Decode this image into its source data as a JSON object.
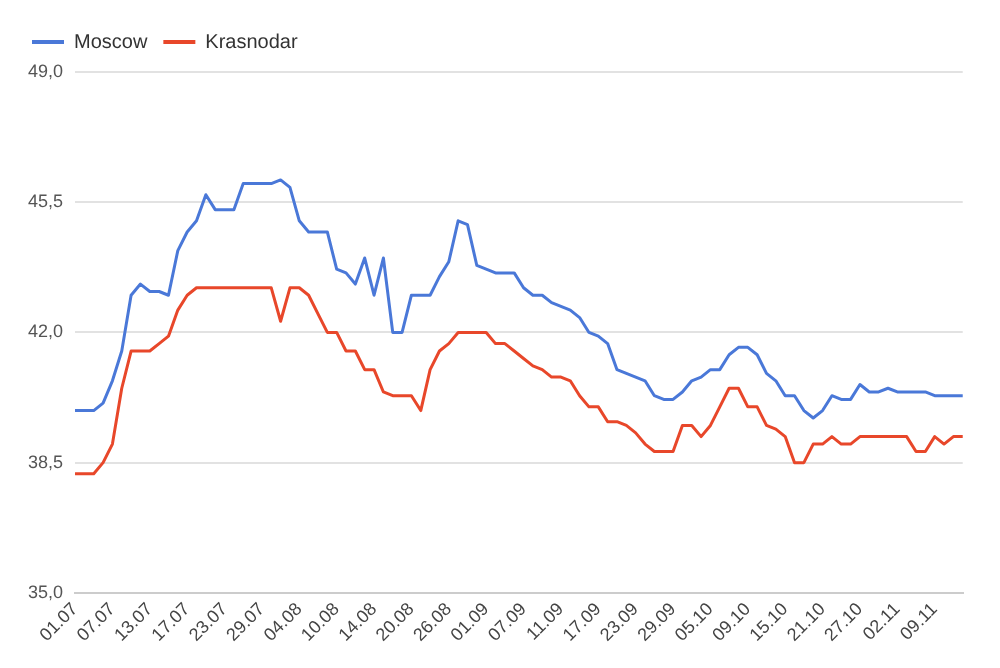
{
  "chart_data": {
    "type": "line",
    "categories": [
      "01.07",
      null,
      null,
      null,
      "07.07",
      null,
      null,
      null,
      "13.07",
      null,
      null,
      null,
      "17.07",
      null,
      null,
      null,
      "23.07",
      null,
      null,
      null,
      "29.07",
      null,
      null,
      null,
      "04.08",
      null,
      null,
      null,
      "10.08",
      null,
      null,
      null,
      "14.08",
      null,
      null,
      null,
      "20.08",
      null,
      null,
      null,
      "26.08",
      null,
      null,
      null,
      "01.09",
      null,
      null,
      null,
      "07.09",
      null,
      null,
      null,
      "11.09",
      null,
      null,
      null,
      "17.09",
      null,
      null,
      null,
      "23.09",
      null,
      null,
      null,
      "29.09",
      null,
      null,
      null,
      "05.10",
      null,
      null,
      null,
      "09.10",
      null,
      null,
      null,
      "15.10",
      null,
      null,
      null,
      "21.10",
      null,
      null,
      null,
      "27.10",
      null,
      null,
      null,
      "02.11",
      null,
      null,
      null,
      "09.11",
      null,
      null,
      null
    ],
    "series": [
      {
        "name": "Moscow",
        "color": "#4a78d8",
        "values": [
          39.9,
          39.9,
          39.9,
          40.1,
          40.7,
          41.5,
          43.0,
          43.3,
          43.1,
          43.1,
          43.0,
          44.2,
          44.7,
          45.0,
          45.7,
          45.3,
          45.3,
          45.3,
          46.0,
          46.0,
          46.0,
          46.0,
          46.1,
          45.9,
          45.0,
          44.7,
          44.7,
          44.7,
          43.7,
          43.6,
          43.3,
          44.0,
          43.0,
          44.0,
          42.0,
          42.0,
          43.0,
          43.0,
          43.0,
          43.5,
          43.9,
          45.0,
          44.9,
          43.8,
          43.7,
          43.6,
          43.6,
          43.6,
          43.2,
          43.0,
          43.0,
          42.8,
          42.7,
          42.6,
          42.4,
          42.0,
          41.9,
          41.7,
          41.0,
          40.9,
          40.8,
          40.7,
          40.3,
          40.2,
          40.2,
          40.4,
          40.7,
          40.8,
          41.0,
          41.0,
          41.4,
          41.6,
          41.6,
          41.4,
          40.9,
          40.7,
          40.3,
          40.3,
          39.9,
          39.7,
          39.9,
          40.3,
          40.2,
          40.2,
          40.6,
          40.4,
          40.4,
          40.5,
          40.4,
          40.4,
          40.4,
          40.4,
          40.3,
          40.3,
          40.3,
          40.3
        ]
      },
      {
        "name": "Krasnodar",
        "color": "#e8472a",
        "values": [
          38.2,
          38.2,
          38.2,
          38.5,
          39.0,
          40.5,
          41.5,
          41.5,
          41.5,
          41.7,
          41.9,
          42.6,
          43.0,
          43.2,
          43.2,
          43.2,
          43.2,
          43.2,
          43.2,
          43.2,
          43.2,
          43.2,
          42.3,
          43.2,
          43.2,
          43.0,
          42.5,
          42.0,
          42.0,
          41.5,
          41.5,
          41.0,
          41.0,
          40.4,
          40.3,
          40.3,
          40.3,
          39.9,
          41.0,
          41.5,
          41.7,
          42.0,
          42.0,
          42.0,
          42.0,
          41.7,
          41.7,
          41.5,
          41.3,
          41.1,
          41.0,
          40.8,
          40.8,
          40.7,
          40.3,
          40.0,
          40.0,
          39.6,
          39.6,
          39.5,
          39.3,
          39.0,
          38.8,
          38.8,
          38.8,
          39.5,
          39.5,
          39.2,
          39.5,
          40.0,
          40.5,
          40.5,
          40.0,
          40.0,
          39.5,
          39.4,
          39.2,
          38.5,
          38.5,
          39.0,
          39.0,
          39.2,
          39.0,
          39.0,
          39.2,
          39.2,
          39.2,
          39.2,
          39.2,
          39.2,
          38.8,
          38.8,
          39.2,
          39.0,
          39.2,
          39.2
        ]
      }
    ],
    "ylim": [
      35,
      49
    ],
    "yticks": [
      {
        "value": 35,
        "label": "35,0"
      },
      {
        "value": 38.5,
        "label": "38,5"
      },
      {
        "value": 42,
        "label": "42,0"
      },
      {
        "value": 45.5,
        "label": "45,5"
      },
      {
        "value": 49,
        "label": "49,0"
      }
    ],
    "grid": "y",
    "legend": "top left",
    "marker": "none",
    "line_style": "solid"
  }
}
